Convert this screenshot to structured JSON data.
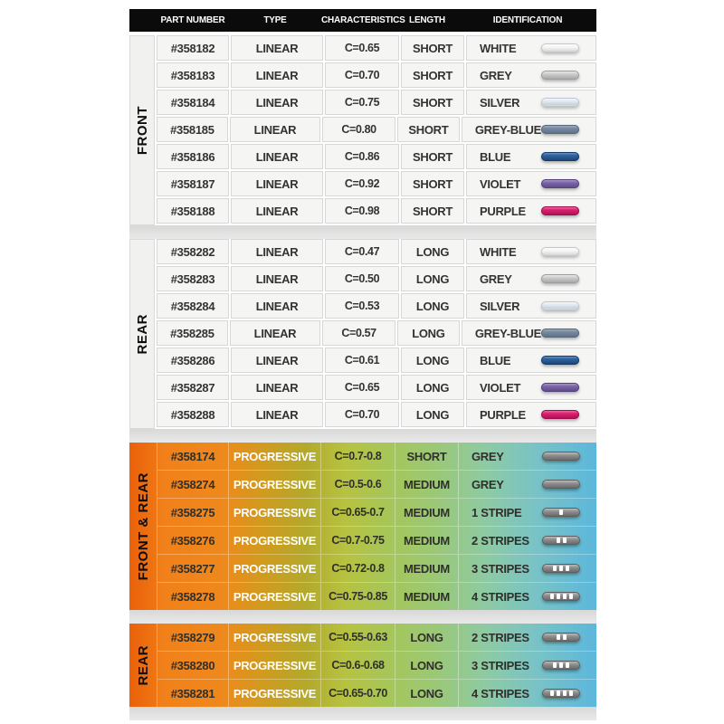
{
  "header": {
    "columns": [
      "PART NUMBER",
      "TYPE",
      "CHARACTERISTICS",
      "LENGTH",
      "IDENTIFICATION"
    ]
  },
  "sections": [
    {
      "label": "FRONT",
      "style": "linear",
      "rows": [
        {
          "part": "#358182",
          "type": "LINEAR",
          "characteristics": "C=0.65",
          "length": "SHORT",
          "identification": "WHITE",
          "rod": "white",
          "stripes": 0
        },
        {
          "part": "#358183",
          "type": "LINEAR",
          "characteristics": "C=0.70",
          "length": "SHORT",
          "identification": "GREY",
          "rod": "grey",
          "stripes": 0
        },
        {
          "part": "#358184",
          "type": "LINEAR",
          "characteristics": "C=0.75",
          "length": "SHORT",
          "identification": "SILVER",
          "rod": "silver",
          "stripes": 0
        },
        {
          "part": "#358185",
          "type": "LINEAR",
          "characteristics": "C=0.80",
          "length": "SHORT",
          "identification": "GREY-BLUE",
          "rod": "grey-blue",
          "stripes": 0
        },
        {
          "part": "#358186",
          "type": "LINEAR",
          "characteristics": "C=0.86",
          "length": "SHORT",
          "identification": "BLUE",
          "rod": "blue",
          "stripes": 0
        },
        {
          "part": "#358187",
          "type": "LINEAR",
          "characteristics": "C=0.92",
          "length": "SHORT",
          "identification": "VIOLET",
          "rod": "violet",
          "stripes": 0
        },
        {
          "part": "#358188",
          "type": "LINEAR",
          "characteristics": "C=0.98",
          "length": "SHORT",
          "identification": "PURPLE",
          "rod": "purple",
          "stripes": 0
        }
      ]
    },
    {
      "label": "REAR",
      "style": "linear",
      "rows": [
        {
          "part": "#358282",
          "type": "LINEAR",
          "characteristics": "C=0.47",
          "length": "LONG",
          "identification": "WHITE",
          "rod": "white",
          "stripes": 0
        },
        {
          "part": "#358283",
          "type": "LINEAR",
          "characteristics": "C=0.50",
          "length": "LONG",
          "identification": "GREY",
          "rod": "grey",
          "stripes": 0
        },
        {
          "part": "#358284",
          "type": "LINEAR",
          "characteristics": "C=0.53",
          "length": "LONG",
          "identification": "SILVER",
          "rod": "silver",
          "stripes": 0
        },
        {
          "part": "#358285",
          "type": "LINEAR",
          "characteristics": "C=0.57",
          "length": "LONG",
          "identification": "GREY-BLUE",
          "rod": "grey-blue",
          "stripes": 0
        },
        {
          "part": "#358286",
          "type": "LINEAR",
          "characteristics": "C=0.61",
          "length": "LONG",
          "identification": "BLUE",
          "rod": "blue",
          "stripes": 0
        },
        {
          "part": "#358287",
          "type": "LINEAR",
          "characteristics": "C=0.65",
          "length": "LONG",
          "identification": "VIOLET",
          "rod": "violet",
          "stripes": 0
        },
        {
          "part": "#358288",
          "type": "LINEAR",
          "characteristics": "C=0.70",
          "length": "LONG",
          "identification": "PURPLE",
          "rod": "purple",
          "stripes": 0
        }
      ]
    },
    {
      "label": "FRONT & REAR",
      "style": "progressive",
      "rows": [
        {
          "part": "#358174",
          "type": "PROGRESSIVE",
          "characteristics": "C=0.7-0.8",
          "length": "SHORT",
          "identification": "GREY",
          "rod": "prog",
          "stripes": 0
        },
        {
          "part": "#358274",
          "type": "PROGRESSIVE",
          "characteristics": "C=0.5-0.6",
          "length": "MEDIUM",
          "identification": "GREY",
          "rod": "prog",
          "stripes": 0
        },
        {
          "part": "#358275",
          "type": "PROGRESSIVE",
          "characteristics": "C=0.65-0.7",
          "length": "MEDIUM",
          "identification": "1 STRIPE",
          "rod": "prog",
          "stripes": 1
        },
        {
          "part": "#358276",
          "type": "PROGRESSIVE",
          "characteristics": "C=0.7-0.75",
          "length": "MEDIUM",
          "identification": "2 STRIPES",
          "rod": "prog",
          "stripes": 2
        },
        {
          "part": "#358277",
          "type": "PROGRESSIVE",
          "characteristics": "C=0.72-0.8",
          "length": "MEDIUM",
          "identification": "3 STRIPES",
          "rod": "prog",
          "stripes": 3
        },
        {
          "part": "#358278",
          "type": "PROGRESSIVE",
          "characteristics": "C=0.75-0.85",
          "length": "MEDIUM",
          "identification": "4 STRIPES",
          "rod": "prog",
          "stripes": 4
        }
      ]
    },
    {
      "label": "REAR",
      "style": "progressive",
      "rows": [
        {
          "part": "#358279",
          "type": "PROGRESSIVE",
          "characteristics": "C=0.55-0.63",
          "length": "LONG",
          "identification": "2 STRIPES",
          "rod": "prog",
          "stripes": 2
        },
        {
          "part": "#358280",
          "type": "PROGRESSIVE",
          "characteristics": "C=0.6-0.68",
          "length": "LONG",
          "identification": "3 STRIPES",
          "rod": "prog",
          "stripes": 3
        },
        {
          "part": "#358281",
          "type": "PROGRESSIVE",
          "characteristics": "C=0.65-0.70",
          "length": "LONG",
          "identification": "4 STRIPES",
          "rod": "prog",
          "stripes": 4
        }
      ]
    }
  ],
  "colors": {
    "header_bg": "#0b0b0b",
    "progressive_gradient": [
      "#e85f08",
      "#f1801a",
      "#d29a1e",
      "#b7c240",
      "#a5c65a",
      "#8ecaa2",
      "#5cb7dc"
    ],
    "rod": {
      "white": "#f4f4f4",
      "grey": "#c7c7c7",
      "silver": "#e2e8ee",
      "grey-blue": "#76889d",
      "blue": "#2f649f",
      "violet": "#7b64a6",
      "purple": "#d92070",
      "prog": "#8f8f8f",
      "stripe": "#ffffff"
    }
  }
}
